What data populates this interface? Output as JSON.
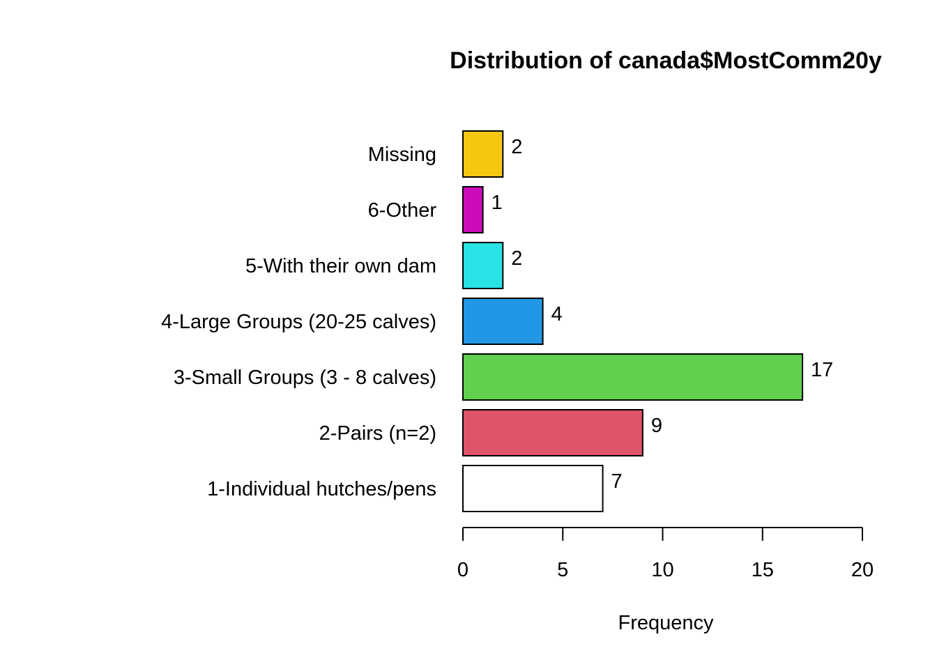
{
  "chart_data": {
    "type": "bar",
    "orientation": "horizontal",
    "title": "Distribution of canada$MostComm20y",
    "xlabel": "Frequency",
    "ylabel": "",
    "xlim": [
      0,
      20
    ],
    "xticks": [
      0,
      5,
      10,
      15,
      20
    ],
    "grid": false,
    "categories": [
      "1-Individual hutches/pens",
      "2-Pairs (n=2)",
      "3-Small Groups (3 - 8 calves)",
      "4-Large Groups (20-25 calves)",
      "5-With their own dam",
      "6-Other",
      "Missing"
    ],
    "values": [
      7,
      9,
      17,
      4,
      2,
      1,
      2
    ],
    "colors": [
      "#FFFFFF",
      "#DF536B",
      "#61D04F",
      "#2297E6",
      "#28E2E5",
      "#CD0BBC",
      "#F5C710"
    ]
  }
}
